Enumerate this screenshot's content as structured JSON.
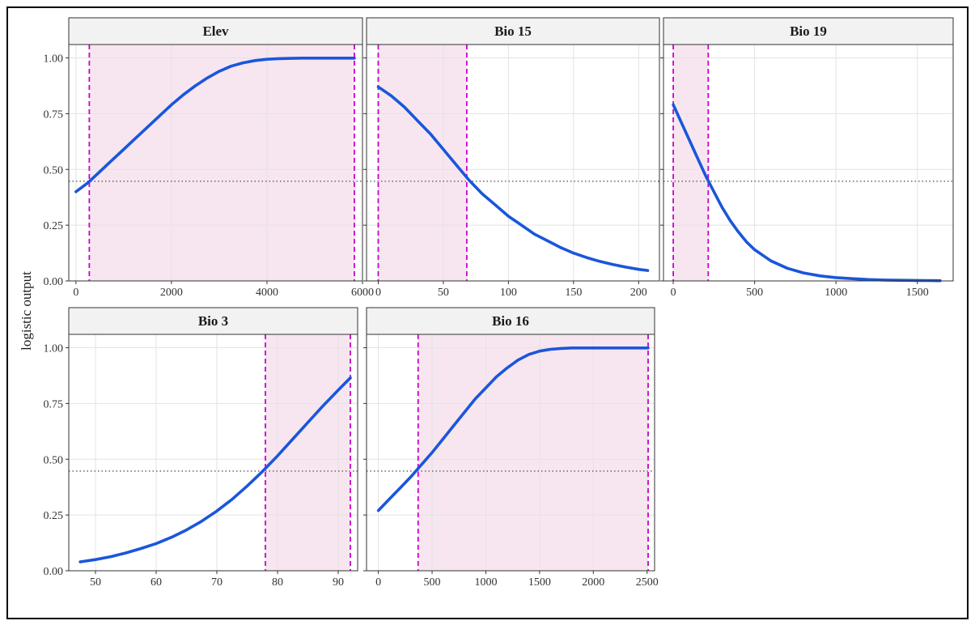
{
  "ylabel": "logistic output",
  "colors": {
    "curve": "#1a56db",
    "threshold_line": "#cc00cc",
    "shade": "#f7e6f0",
    "reference_line": "#666666",
    "strip_fill": "#f2f2f2",
    "grid": "#e3e3e3"
  },
  "chart_data": [
    {
      "type": "line",
      "title": "Elev",
      "xlim": [
        -150,
        6000
      ],
      "ylim": [
        0,
        1.06
      ],
      "xticks": [
        0,
        2000,
        4000,
        6000
      ],
      "xtick_labels": [
        "0",
        "2000",
        "4000",
        "6000"
      ],
      "yticks": [
        0,
        0.25,
        0.5,
        0.75,
        1
      ],
      "ytick_labels": [
        "0.00",
        "0.25",
        "0.50",
        "0.75",
        "1.00"
      ],
      "threshold": 0.447,
      "shaded_range": [
        280,
        5830
      ],
      "series": [
        {
          "x": [
            0,
            250,
            500,
            750,
            1000,
            1250,
            1500,
            1750,
            2000,
            2250,
            2500,
            2750,
            3000,
            3250,
            3500,
            3750,
            4000,
            4250,
            4500,
            4750,
            5000,
            5250,
            5500,
            5830
          ],
          "y": [
            0.4,
            0.44,
            0.49,
            0.54,
            0.59,
            0.64,
            0.69,
            0.74,
            0.79,
            0.835,
            0.875,
            0.91,
            0.94,
            0.963,
            0.978,
            0.988,
            0.994,
            0.997,
            0.998,
            0.999,
            0.999,
            0.999,
            0.999,
            0.999
          ]
        }
      ]
    },
    {
      "type": "line",
      "title": "Bio 15",
      "xlim": [
        -9,
        216
      ],
      "ylim": [
        0,
        1.06
      ],
      "xticks": [
        0,
        50,
        100,
        150,
        200
      ],
      "xtick_labels": [
        "0",
        "50",
        "100",
        "150",
        "200"
      ],
      "yticks": [
        0,
        0.25,
        0.5,
        0.75,
        1
      ],
      "threshold": 0.447,
      "shaded_range": [
        0,
        68
      ],
      "series": [
        {
          "x": [
            0,
            10,
            20,
            30,
            40,
            50,
            60,
            70,
            80,
            90,
            100,
            110,
            120,
            130,
            140,
            150,
            160,
            170,
            180,
            190,
            200,
            207
          ],
          "y": [
            0.87,
            0.83,
            0.78,
            0.72,
            0.66,
            0.59,
            0.52,
            0.45,
            0.39,
            0.34,
            0.29,
            0.25,
            0.21,
            0.18,
            0.15,
            0.125,
            0.105,
            0.088,
            0.074,
            0.062,
            0.052,
            0.047
          ]
        }
      ]
    },
    {
      "type": "line",
      "title": "Bio 19",
      "xlim": [
        -60,
        1720
      ],
      "ylim": [
        0,
        1.06
      ],
      "xticks": [
        0,
        500,
        1000,
        1500
      ],
      "xtick_labels": [
        "0",
        "500",
        "1000",
        "1500"
      ],
      "yticks": [
        0,
        0.25,
        0.5,
        0.75,
        1
      ],
      "threshold": 0.447,
      "shaded_range": [
        0,
        215
      ],
      "series": [
        {
          "x": [
            0,
            50,
            100,
            150,
            200,
            250,
            300,
            350,
            400,
            450,
            500,
            600,
            700,
            800,
            900,
            1000,
            1100,
            1200,
            1300,
            1400,
            1500,
            1640
          ],
          "y": [
            0.79,
            0.71,
            0.63,
            0.55,
            0.47,
            0.4,
            0.33,
            0.27,
            0.22,
            0.175,
            0.14,
            0.09,
            0.057,
            0.036,
            0.023,
            0.015,
            0.01,
            0.006,
            0.004,
            0.003,
            0.002,
            0.001
          ]
        }
      ]
    },
    {
      "type": "line",
      "title": "Bio 3",
      "xlim": [
        45.6,
        93.2
      ],
      "ylim": [
        0,
        1.06
      ],
      "xticks": [
        50,
        60,
        70,
        80,
        90
      ],
      "xtick_labels": [
        "50",
        "60",
        "70",
        "80",
        "90"
      ],
      "yticks": [
        0,
        0.25,
        0.5,
        0.75,
        1
      ],
      "ytick_labels": [
        "0.00",
        "0.25",
        "0.50",
        "0.75",
        "1.00"
      ],
      "threshold": 0.447,
      "shaded_range": [
        78,
        92
      ],
      "series": [
        {
          "x": [
            47.5,
            50,
            52.5,
            55,
            57.5,
            60,
            62.5,
            65,
            67.5,
            70,
            72.5,
            75,
            77.5,
            80,
            82.5,
            85,
            87.5,
            90,
            92
          ],
          "y": [
            0.04,
            0.05,
            0.063,
            0.08,
            0.1,
            0.122,
            0.15,
            0.183,
            0.222,
            0.268,
            0.32,
            0.38,
            0.445,
            0.515,
            0.59,
            0.665,
            0.74,
            0.81,
            0.865
          ]
        }
      ]
    },
    {
      "type": "line",
      "title": "Bio 16",
      "xlim": [
        -110,
        2570
      ],
      "ylim": [
        0,
        1.06
      ],
      "xticks": [
        0,
        500,
        1000,
        1500,
        2000,
        2500
      ],
      "xtick_labels": [
        "0",
        "500",
        "1000",
        "1500",
        "2000",
        "2500"
      ],
      "yticks": [
        0,
        0.25,
        0.5,
        0.75,
        1
      ],
      "threshold": 0.447,
      "shaded_range": [
        370,
        2510
      ],
      "series": [
        {
          "x": [
            0,
            100,
            200,
            300,
            400,
            500,
            600,
            700,
            800,
            900,
            1000,
            1100,
            1200,
            1300,
            1400,
            1500,
            1600,
            1700,
            1800,
            1900,
            2000,
            2200,
            2400,
            2510
          ],
          "y": [
            0.27,
            0.32,
            0.37,
            0.42,
            0.475,
            0.53,
            0.59,
            0.65,
            0.71,
            0.77,
            0.82,
            0.87,
            0.91,
            0.945,
            0.97,
            0.985,
            0.993,
            0.997,
            0.999,
            0.999,
            0.999,
            0.999,
            0.999,
            0.999
          ]
        }
      ]
    }
  ]
}
